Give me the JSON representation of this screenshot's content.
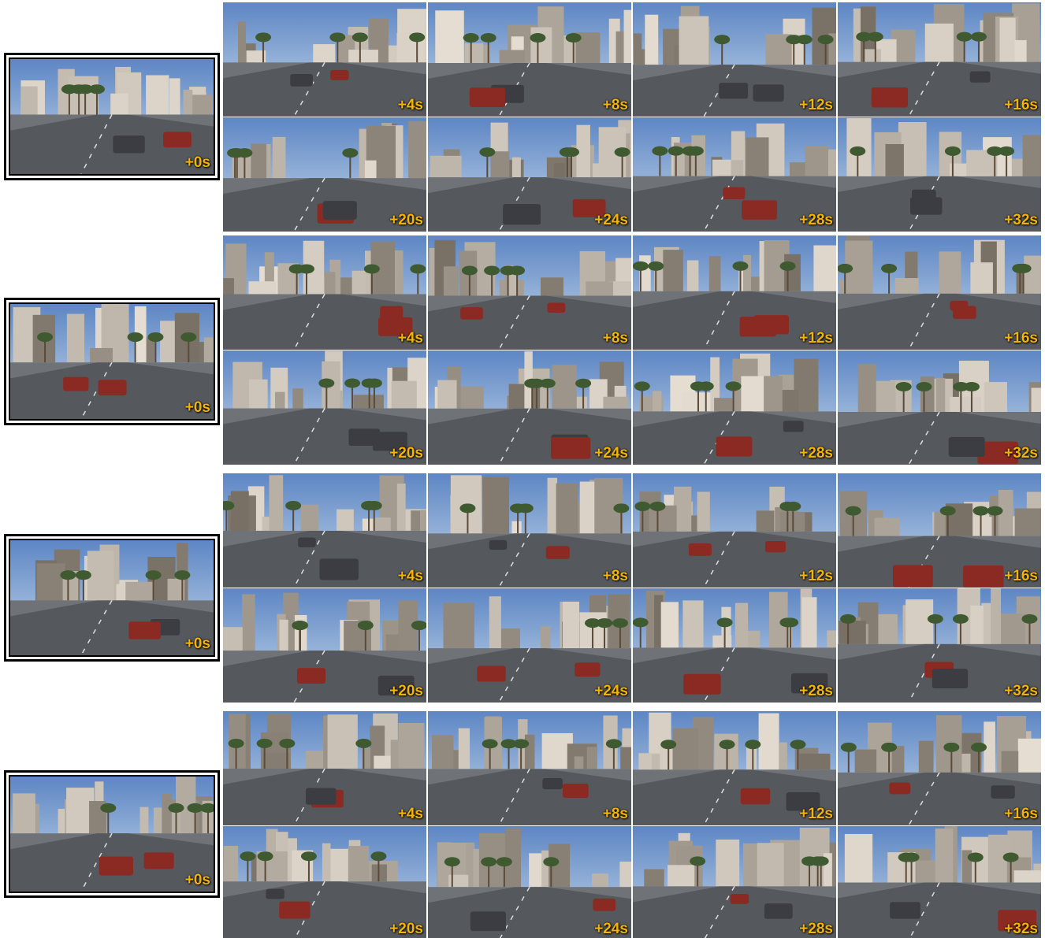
{
  "groups": [
    {
      "initial": "+0s",
      "frames": [
        "+4s",
        "+8s",
        "+12s",
        "+16s",
        "+20s",
        "+24s",
        "+28s",
        "+32s"
      ]
    },
    {
      "initial": "+0s",
      "frames": [
        "+4s",
        "+8s",
        "+12s",
        "+16s",
        "+20s",
        "+24s",
        "+28s",
        "+32s"
      ]
    },
    {
      "initial": "+0s",
      "frames": [
        "+4s",
        "+8s",
        "+12s",
        "+16s",
        "+20s",
        "+24s",
        "+28s",
        "+32s"
      ]
    },
    {
      "initial": "+0s",
      "frames": [
        "+4s",
        "+8s",
        "+12s",
        "+16s",
        "+20s",
        "+24s",
        "+28s",
        "+32s"
      ]
    }
  ]
}
